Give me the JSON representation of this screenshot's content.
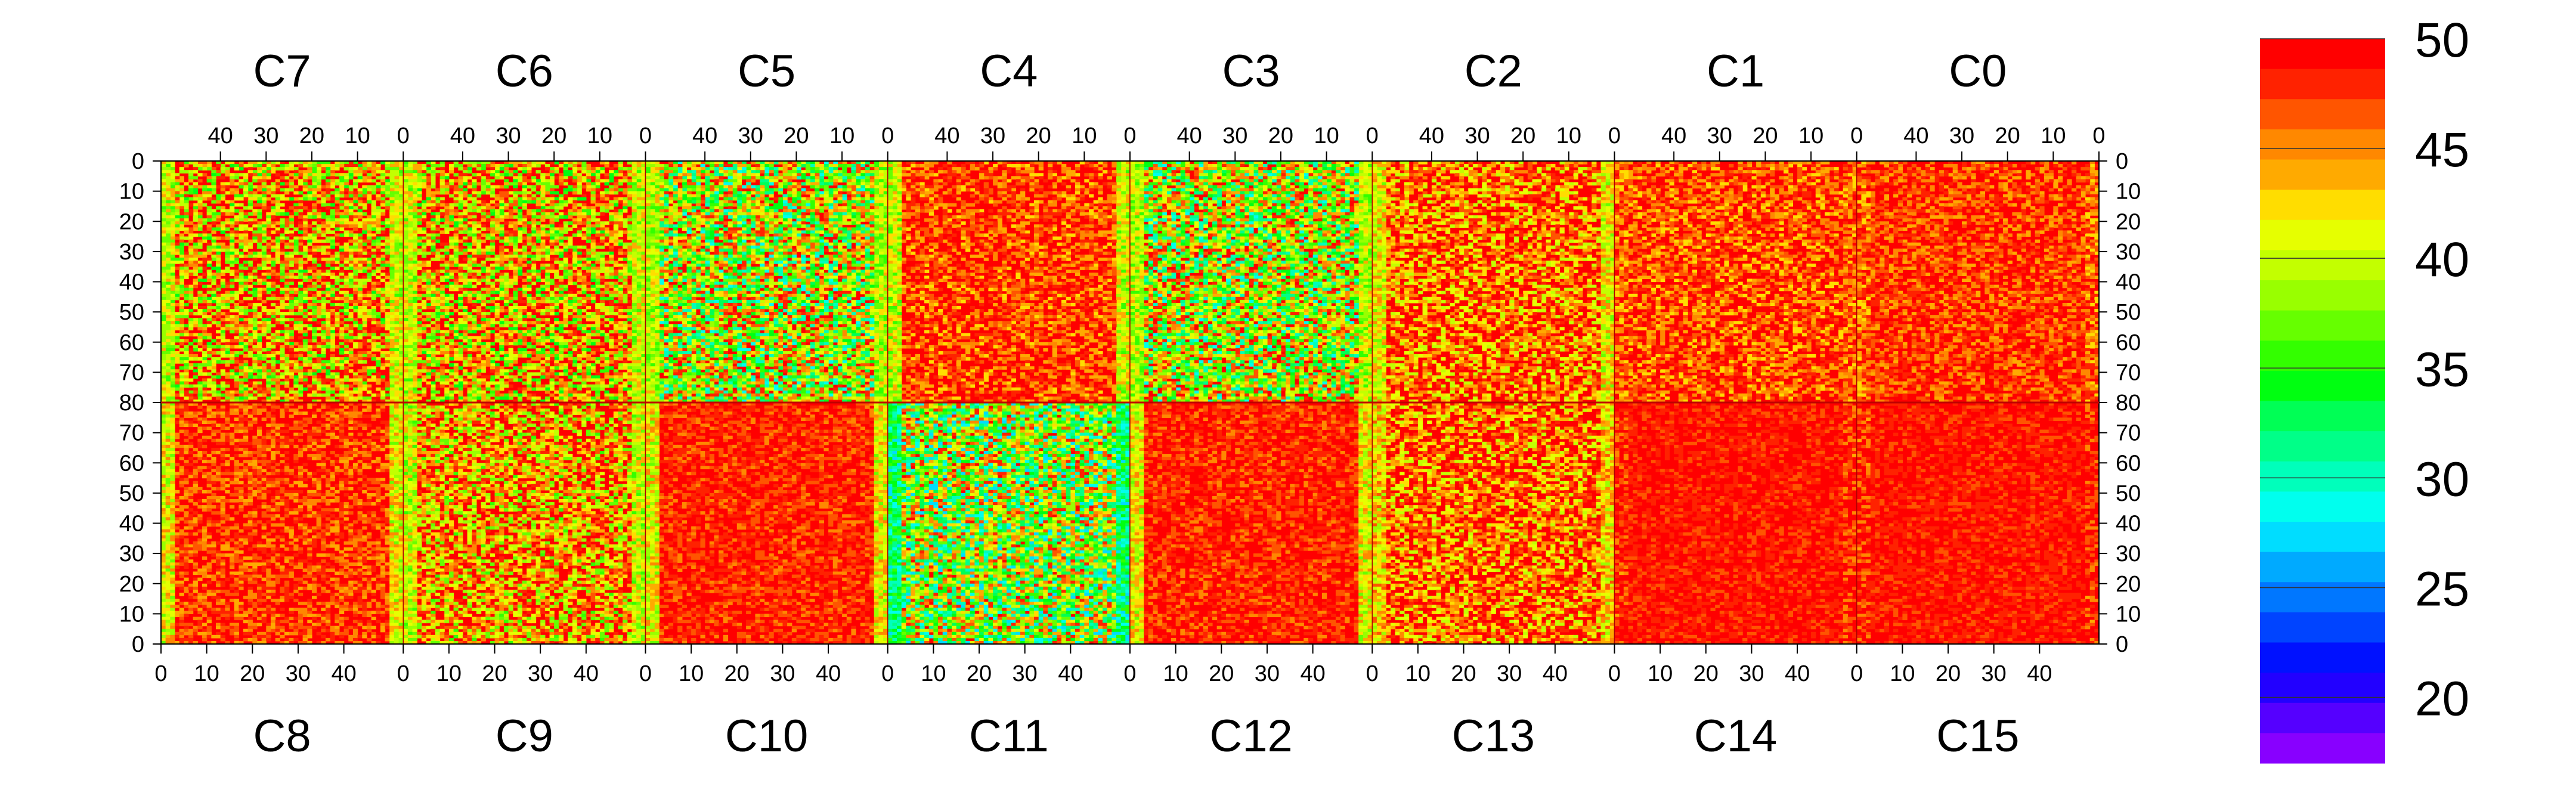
{
  "chart_data": {
    "type": "heatmap",
    "title": "",
    "top_panels": [
      {
        "label": "C7",
        "level": 0.8,
        "edge": 0.45,
        "noise": 0.9
      },
      {
        "label": "C6",
        "level": 0.78,
        "edge": 0.45,
        "noise": 0.9
      },
      {
        "label": "C5",
        "level": 0.62,
        "edge": 0.42,
        "noise": 1.0
      },
      {
        "label": "C4",
        "level": 0.95,
        "edge": 0.45,
        "noise": 0.5
      },
      {
        "label": "C3",
        "level": 0.62,
        "edge": 0.42,
        "noise": 1.0
      },
      {
        "label": "C2",
        "level": 0.9,
        "edge": 0.5,
        "noise": 0.7
      },
      {
        "label": "C1",
        "level": 0.93,
        "edge": 0.7,
        "noise": 0.5
      },
      {
        "label": "C0",
        "level": 0.95,
        "edge": 0.7,
        "noise": 0.4
      }
    ],
    "bottom_panels": [
      {
        "label": "C8",
        "level": 0.95,
        "edge": 0.5,
        "noise": 0.4
      },
      {
        "label": "C9",
        "level": 0.82,
        "edge": 0.45,
        "noise": 0.8
      },
      {
        "label": "C10",
        "level": 0.97,
        "edge": 0.5,
        "noise": 0.3
      },
      {
        "label": "C11",
        "level": 0.55,
        "edge": 0.12,
        "noise": 1.0
      },
      {
        "label": "C12",
        "level": 0.97,
        "edge": 0.5,
        "noise": 0.3
      },
      {
        "label": "C13",
        "level": 0.9,
        "edge": 0.55,
        "noise": 0.7
      },
      {
        "label": "C14",
        "level": 0.98,
        "edge": 0.8,
        "noise": 0.2
      },
      {
        "label": "C15",
        "level": 0.98,
        "edge": 0.8,
        "noise": 0.2
      }
    ],
    "x_per_panel": [
      0,
      53
    ],
    "x_ticks_top": [
      "40",
      "30",
      "20",
      "10",
      "0"
    ],
    "x_ticks_bottom": [
      "0",
      "10",
      "20",
      "30",
      "40"
    ],
    "y_top_ticks": [
      "0",
      "10",
      "20",
      "30",
      "40",
      "50",
      "60",
      "70",
      "80"
    ],
    "y_bottom_ticks": [
      "70",
      "60",
      "50",
      "40",
      "30",
      "20",
      "10",
      "0"
    ],
    "y_range": [
      0,
      80
    ],
    "color_scale": {
      "zlim": [
        17,
        50
      ],
      "ticks": [
        "50",
        "45",
        "40",
        "35",
        "30",
        "25",
        "20"
      ],
      "colors": [
        "#ff0000",
        "#ff2200",
        "#ff5500",
        "#ff8800",
        "#ffaa00",
        "#ffdd00",
        "#e6ff00",
        "#c3ff00",
        "#99ff00",
        "#66ff00",
        "#33ff00",
        "#00ff11",
        "#00ff55",
        "#00ff88",
        "#00ffbb",
        "#00ffee",
        "#00ddff",
        "#00aaff",
        "#0077ff",
        "#0044ff",
        "#0011ff",
        "#2200ff",
        "#5500ff",
        "#8800ff"
      ]
    },
    "grid": false
  }
}
